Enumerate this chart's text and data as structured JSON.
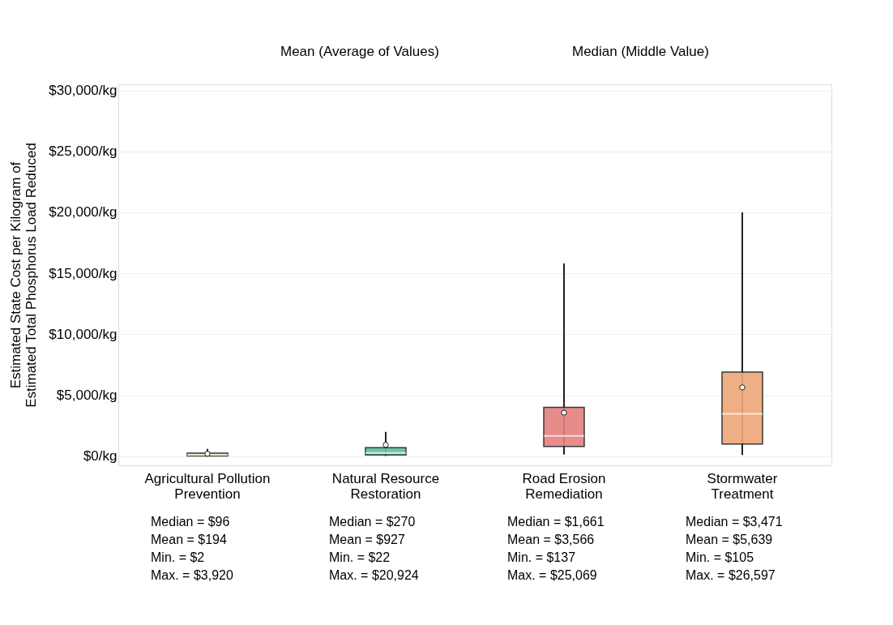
{
  "chart_data": {
    "type": "box",
    "categories": [
      "Agricultural Pollution\nPrevention",
      "Natural Resource\nRestoration",
      "Road Erosion\nRemediation",
      "Stormwater\nTreatment"
    ],
    "colors": [
      "#f0d050",
      "#5dc09a",
      "#e57f7f",
      "#eea777"
    ],
    "boxes": [
      {
        "low": 2,
        "q1": 20,
        "median": 96,
        "q3": 250,
        "high": 600,
        "mean": 194
      },
      {
        "low": 22,
        "q1": 100,
        "median": 270,
        "q3": 700,
        "high": 2000,
        "mean": 927
      },
      {
        "low": 137,
        "q1": 800,
        "median": 1661,
        "q3": 4000,
        "high": 15800,
        "mean": 3566
      },
      {
        "low": 105,
        "q1": 1000,
        "median": 3471,
        "q3": 6900,
        "high": 20000,
        "mean": 5639
      }
    ],
    "ylabel": "Estimated State Cost per Kilogram of\nEstimated Total Phosphorus Load Reduced",
    "ylim": [
      -750,
      30500
    ],
    "yticks": [
      {
        "value": 0,
        "label": "$0/kg"
      },
      {
        "value": 5000,
        "label": "$5,000/kg"
      },
      {
        "value": 10000,
        "label": "$10,000/kg"
      },
      {
        "value": 15000,
        "label": "$15,000/kg"
      },
      {
        "value": 20000,
        "label": "$20,000/kg"
      },
      {
        "value": 25000,
        "label": "$25,000/kg"
      },
      {
        "value": 30000,
        "label": "$30,000/kg"
      }
    ],
    "grid": "y",
    "annotations": [
      "Mean (Average of Values)",
      "Median (Middle Value)",
      "Median = $96",
      "Mean = $194",
      "Min. = $2",
      "Max. = $3,920",
      "Median = $270",
      "Mean = $927",
      "Min. = $22",
      "Max. = $20,924",
      "Median = $1,661",
      "Mean = $3,566",
      "Min. = $137",
      "Max. = $25,069",
      "Median = $3,471",
      "Mean = $5,639",
      "Min. = $105",
      "Max. = $26,597"
    ]
  }
}
